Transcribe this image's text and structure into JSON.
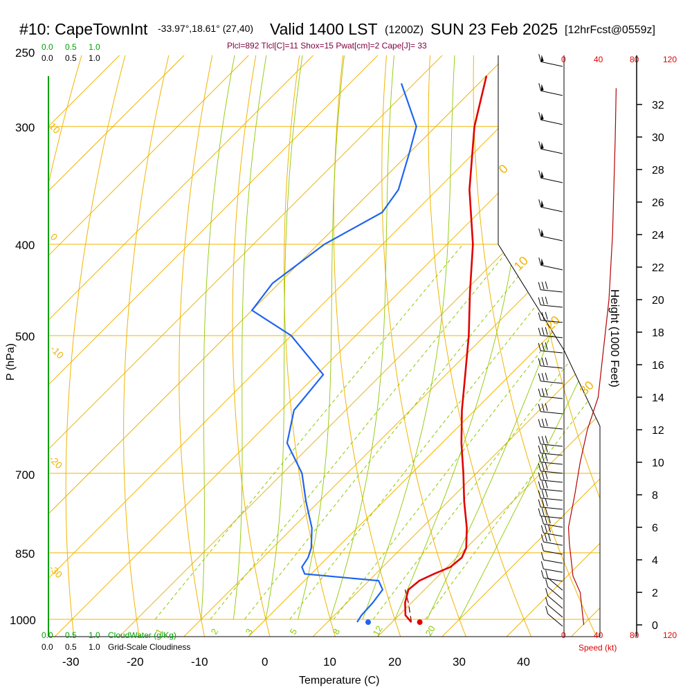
{
  "header": {
    "station": "#10: CapeTownInt",
    "coords": "-33.97°,18.61° (27,40)",
    "valid": "Valid 1400 LST",
    "zulu": "(1200Z)",
    "date": "SUN 23 Feb 2025",
    "forecast": "[12hrFcst@0559z]"
  },
  "stats_line": "Plcl=892 Tlcl[C]=11 Shox=15 Pwat[cm]=2 Cape[J]= 33",
  "colors": {
    "isotherm": "#f0b400",
    "dry_adiabat": "#f0b400",
    "moist_adiabat": "#8cc800",
    "mixing_ratio": "#8cc800",
    "temperature": "#e00000",
    "dewpoint": "#1e64f0",
    "parcel": "#800000",
    "wind_speed": "#b40000",
    "cloud_scale": "#00a000",
    "stats": "#800040"
  },
  "legends": {
    "cloud_top": [
      "0.0",
      "0.5",
      "1.0"
    ],
    "cloudiness_top": [
      "0.0",
      "0.5",
      "1.0"
    ],
    "cloud_bottom": [
      "0.0",
      "0.5",
      "1.0"
    ],
    "cloud_bottom_label": "CloudWater (g/Kg)",
    "cloudiness_bottom": [
      "0.0",
      "0.5",
      "1.0"
    ],
    "cloudiness_bottom_label": "Grid-Scale Cloudiness"
  },
  "chart_data": {
    "type": "skew-t",
    "xlabel": "Temperature (C)",
    "ylabel": "P (hPa)",
    "y2label": "Height (1000 Feet)",
    "speed_label": "Speed (kt)",
    "x_ticks": [
      "-30",
      "-20",
      "-10",
      "0",
      "10",
      "20",
      "30",
      "40"
    ],
    "p_ticks": [
      "250",
      "300",
      "400",
      "500",
      "700",
      "850",
      "1000"
    ],
    "height_ticks": [
      "0",
      "2",
      "4",
      "6",
      "8",
      "10",
      "12",
      "14",
      "16",
      "18",
      "20",
      "22",
      "24",
      "26",
      "28",
      "30",
      "32"
    ],
    "speed_ticks_top": [
      "0",
      "40",
      "80",
      "120"
    ],
    "speed_ticks_bottom": [
      "0",
      "40",
      "80",
      "120"
    ],
    "mixing_ratio_labels": [
      "1",
      "2",
      "3",
      "5",
      "8",
      "12",
      "20"
    ],
    "isotherm_labels_left": [
      "10",
      "0",
      "-10",
      "-20",
      "-30"
    ],
    "adiabat_labels": [
      "0",
      "10",
      "20",
      "30"
    ],
    "temperature_profile": [
      {
        "p": 1007,
        "t": 23.0
      },
      {
        "p": 990,
        "t": 21.0
      },
      {
        "p": 960,
        "t": 19.0
      },
      {
        "p": 930,
        "t": 17.5
      },
      {
        "p": 910,
        "t": 17.8
      },
      {
        "p": 895,
        "t": 19.0
      },
      {
        "p": 880,
        "t": 20.5
      },
      {
        "p": 860,
        "t": 20.8
      },
      {
        "p": 840,
        "t": 20.0
      },
      {
        "p": 800,
        "t": 17.0
      },
      {
        "p": 750,
        "t": 12.5
      },
      {
        "p": 700,
        "t": 8.0
      },
      {
        "p": 650,
        "t": 3.0
      },
      {
        "p": 600,
        "t": -2.0
      },
      {
        "p": 550,
        "t": -7.0
      },
      {
        "p": 500,
        "t": -12.5
      },
      {
        "p": 450,
        "t": -19.0
      },
      {
        "p": 400,
        "t": -26.0
      },
      {
        "p": 350,
        "t": -35.0
      },
      {
        "p": 300,
        "t": -44.0
      },
      {
        "p": 265,
        "t": -50.0
      }
    ],
    "dewpoint_profile": [
      {
        "p": 1007,
        "td": 14.6
      },
      {
        "p": 990,
        "td": 14.2
      },
      {
        "p": 960,
        "td": 14.0
      },
      {
        "p": 930,
        "td": 13.5
      },
      {
        "p": 910,
        "td": 11.5
      },
      {
        "p": 895,
        "td": -1.0
      },
      {
        "p": 880,
        "td": -2.5
      },
      {
        "p": 860,
        "td": -3.0
      },
      {
        "p": 840,
        "td": -4.0
      },
      {
        "p": 800,
        "td": -7.0
      },
      {
        "p": 750,
        "td": -12.0
      },
      {
        "p": 700,
        "td": -17.0
      },
      {
        "p": 650,
        "td": -24.0
      },
      {
        "p": 600,
        "td": -28.0
      },
      {
        "p": 550,
        "td": -29.0
      },
      {
        "p": 500,
        "td": -40.0
      },
      {
        "p": 470,
        "td": -50.0
      },
      {
        "p": 440,
        "td": -51.0
      },
      {
        "p": 400,
        "td": -49.0
      },
      {
        "p": 370,
        "td": -45.0
      },
      {
        "p": 350,
        "td": -46.0
      },
      {
        "p": 320,
        "td": -50.0
      },
      {
        "p": 300,
        "td": -53.0
      },
      {
        "p": 270,
        "td": -62.0
      }
    ],
    "parcel_path": [
      {
        "p": 1007,
        "t": 23.0
      },
      {
        "p": 960,
        "t": 19.5
      },
      {
        "p": 930,
        "t": 17.0
      }
    ],
    "surface_temperature_marker": 24.3,
    "surface_dewpoint_marker": 16.3,
    "wind_speed_profile": [
      {
        "h": 0,
        "kt": 22
      },
      {
        "h": 1,
        "kt": 20
      },
      {
        "h": 2,
        "kt": 18
      },
      {
        "h": 3,
        "kt": 10
      },
      {
        "h": 4,
        "kt": 8
      },
      {
        "h": 5,
        "kt": 6
      },
      {
        "h": 6,
        "kt": 5
      },
      {
        "h": 8,
        "kt": 12
      },
      {
        "h": 10,
        "kt": 18
      },
      {
        "h": 12,
        "kt": 26
      },
      {
        "h": 14,
        "kt": 38
      },
      {
        "h": 16,
        "kt": 42
      },
      {
        "h": 18,
        "kt": 46
      },
      {
        "h": 20,
        "kt": 50
      },
      {
        "h": 22,
        "kt": 52
      },
      {
        "h": 24,
        "kt": 54
      },
      {
        "h": 26,
        "kt": 55
      },
      {
        "h": 28,
        "kt": 56
      },
      {
        "h": 30,
        "kt": 57
      },
      {
        "h": 33,
        "kt": 58
      }
    ]
  }
}
